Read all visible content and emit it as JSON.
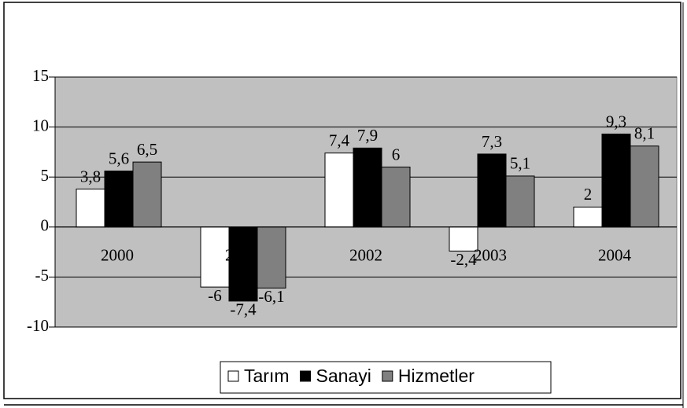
{
  "chart_data": {
    "type": "bar",
    "categories": [
      "2000",
      "2001",
      "2002",
      "2003",
      "2004"
    ],
    "series": [
      {
        "name": "Tarım",
        "color": "#ffffff",
        "values": [
          3.8,
          -6,
          7.4,
          -2.4,
          2
        ],
        "value_labels": [
          "3,8",
          "-6",
          "7,4",
          "-2,4",
          "2"
        ]
      },
      {
        "name": "Sanayi",
        "color": "#000000",
        "values": [
          5.6,
          -7.4,
          7.9,
          7.3,
          9.3
        ],
        "value_labels": [
          "5,6",
          "-7,4",
          "7,9",
          "7,3",
          "9,3"
        ]
      },
      {
        "name": "Hizmetler",
        "color": "#808080",
        "values": [
          6.5,
          -6.1,
          6,
          5.1,
          8.1
        ],
        "value_labels": [
          "6,5",
          "-6,1",
          "6",
          "5,1",
          "8,1"
        ]
      }
    ],
    "ylim": [
      -10,
      15
    ],
    "yticks": [
      -10,
      -5,
      0,
      5,
      10,
      15
    ],
    "grid": true,
    "legend": "bottom"
  }
}
